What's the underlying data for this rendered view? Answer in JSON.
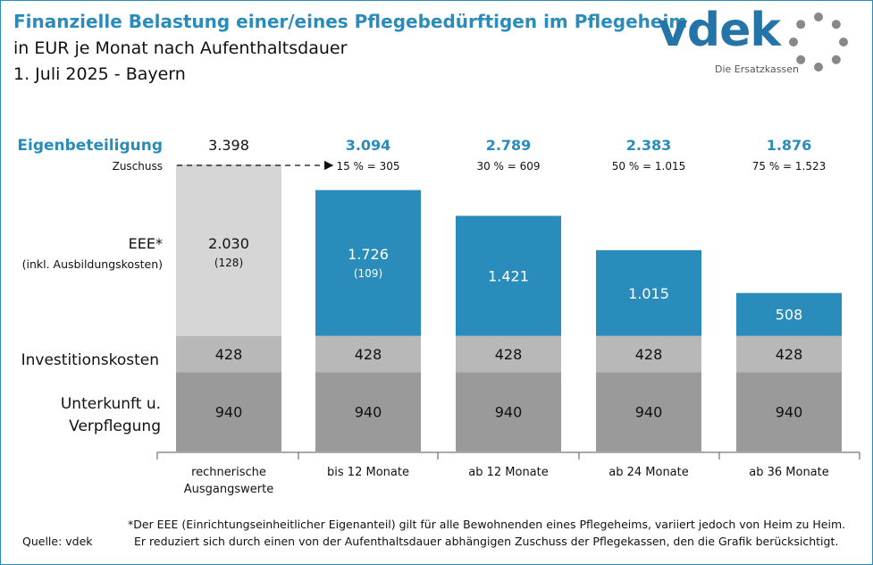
{
  "title": "Finanzielle Belastung einer/eines Pflegebedürftigen im Pflegeheim",
  "subtitle_line1": "in EUR je Monat nach Aufenthaltsdauer",
  "subtitle_line2": "1. Juli 2025 - Bayern",
  "logo": {
    "text": "vdek",
    "tagline": "Die Ersatzkassen"
  },
  "colors": {
    "accent": "#2a8cba",
    "eee_baseline": "#d6d6d6",
    "investition": "#b8b8b8",
    "unterkunft": "#9a9a9a"
  },
  "row_labels": {
    "eigenbeteiligung": "Eigenbeteiligung",
    "zuschuss": "Zuschuss",
    "eee_line1": "EEE*",
    "eee_line2": "(inkl. Ausbildungskosten)",
    "investition": "Investitionskosten",
    "unterkunft_line1": "Unterkunft u.",
    "unterkunft_line2": "Verpflegung"
  },
  "chart_data": {
    "type": "bar",
    "stacked": true,
    "categories": [
      [
        "rechnerische",
        "Ausgangswerte"
      ],
      [
        "bis 12 Monate"
      ],
      [
        "ab 12 Monate"
      ],
      [
        "ab 24 Monate"
      ],
      [
        "ab 36 Monate"
      ]
    ],
    "series": [
      {
        "name": "Unterkunft u. Verpflegung",
        "values": [
          940,
          940,
          940,
          940,
          940
        ]
      },
      {
        "name": "Investitionskosten",
        "values": [
          428,
          428,
          428,
          428,
          428
        ]
      },
      {
        "name": "EEE* (inkl. Ausbildungskosten)",
        "values": [
          2030,
          1726,
          1421,
          1015,
          508
        ]
      }
    ],
    "value_labels": {
      "unterkunft": [
        "940",
        "940",
        "940",
        "940",
        "940"
      ],
      "investition": [
        "428",
        "428",
        "428",
        "428",
        "428"
      ],
      "eee": [
        "2.030",
        "1.726",
        "1.421",
        "1.015",
        "508"
      ],
      "ausbildung": [
        "(128)",
        "(109)",
        "",
        "",
        ""
      ]
    },
    "eigenbeteiligung": [
      "3.398",
      "3.094",
      "2.789",
      "2.383",
      "1.876"
    ],
    "zuschuss": [
      "",
      "15 % = 305",
      "30 % = 609",
      "50 % = 1.015",
      "75 % = 1.523"
    ],
    "ylim": [
      0,
      3398
    ]
  },
  "footnote_line1": "*Der EEE (Einrichtungseinheitlicher Eigenanteil) gilt für alle Bewohnenden eines Pflegeheims, variiert jedoch von Heim zu Heim.",
  "footnote_line2": "Er reduziert sich durch einen von der Aufenthaltsdauer abhängigen Zuschuss der Pflegekassen, den die Grafik berücksichtigt.",
  "source": "Quelle: vdek"
}
